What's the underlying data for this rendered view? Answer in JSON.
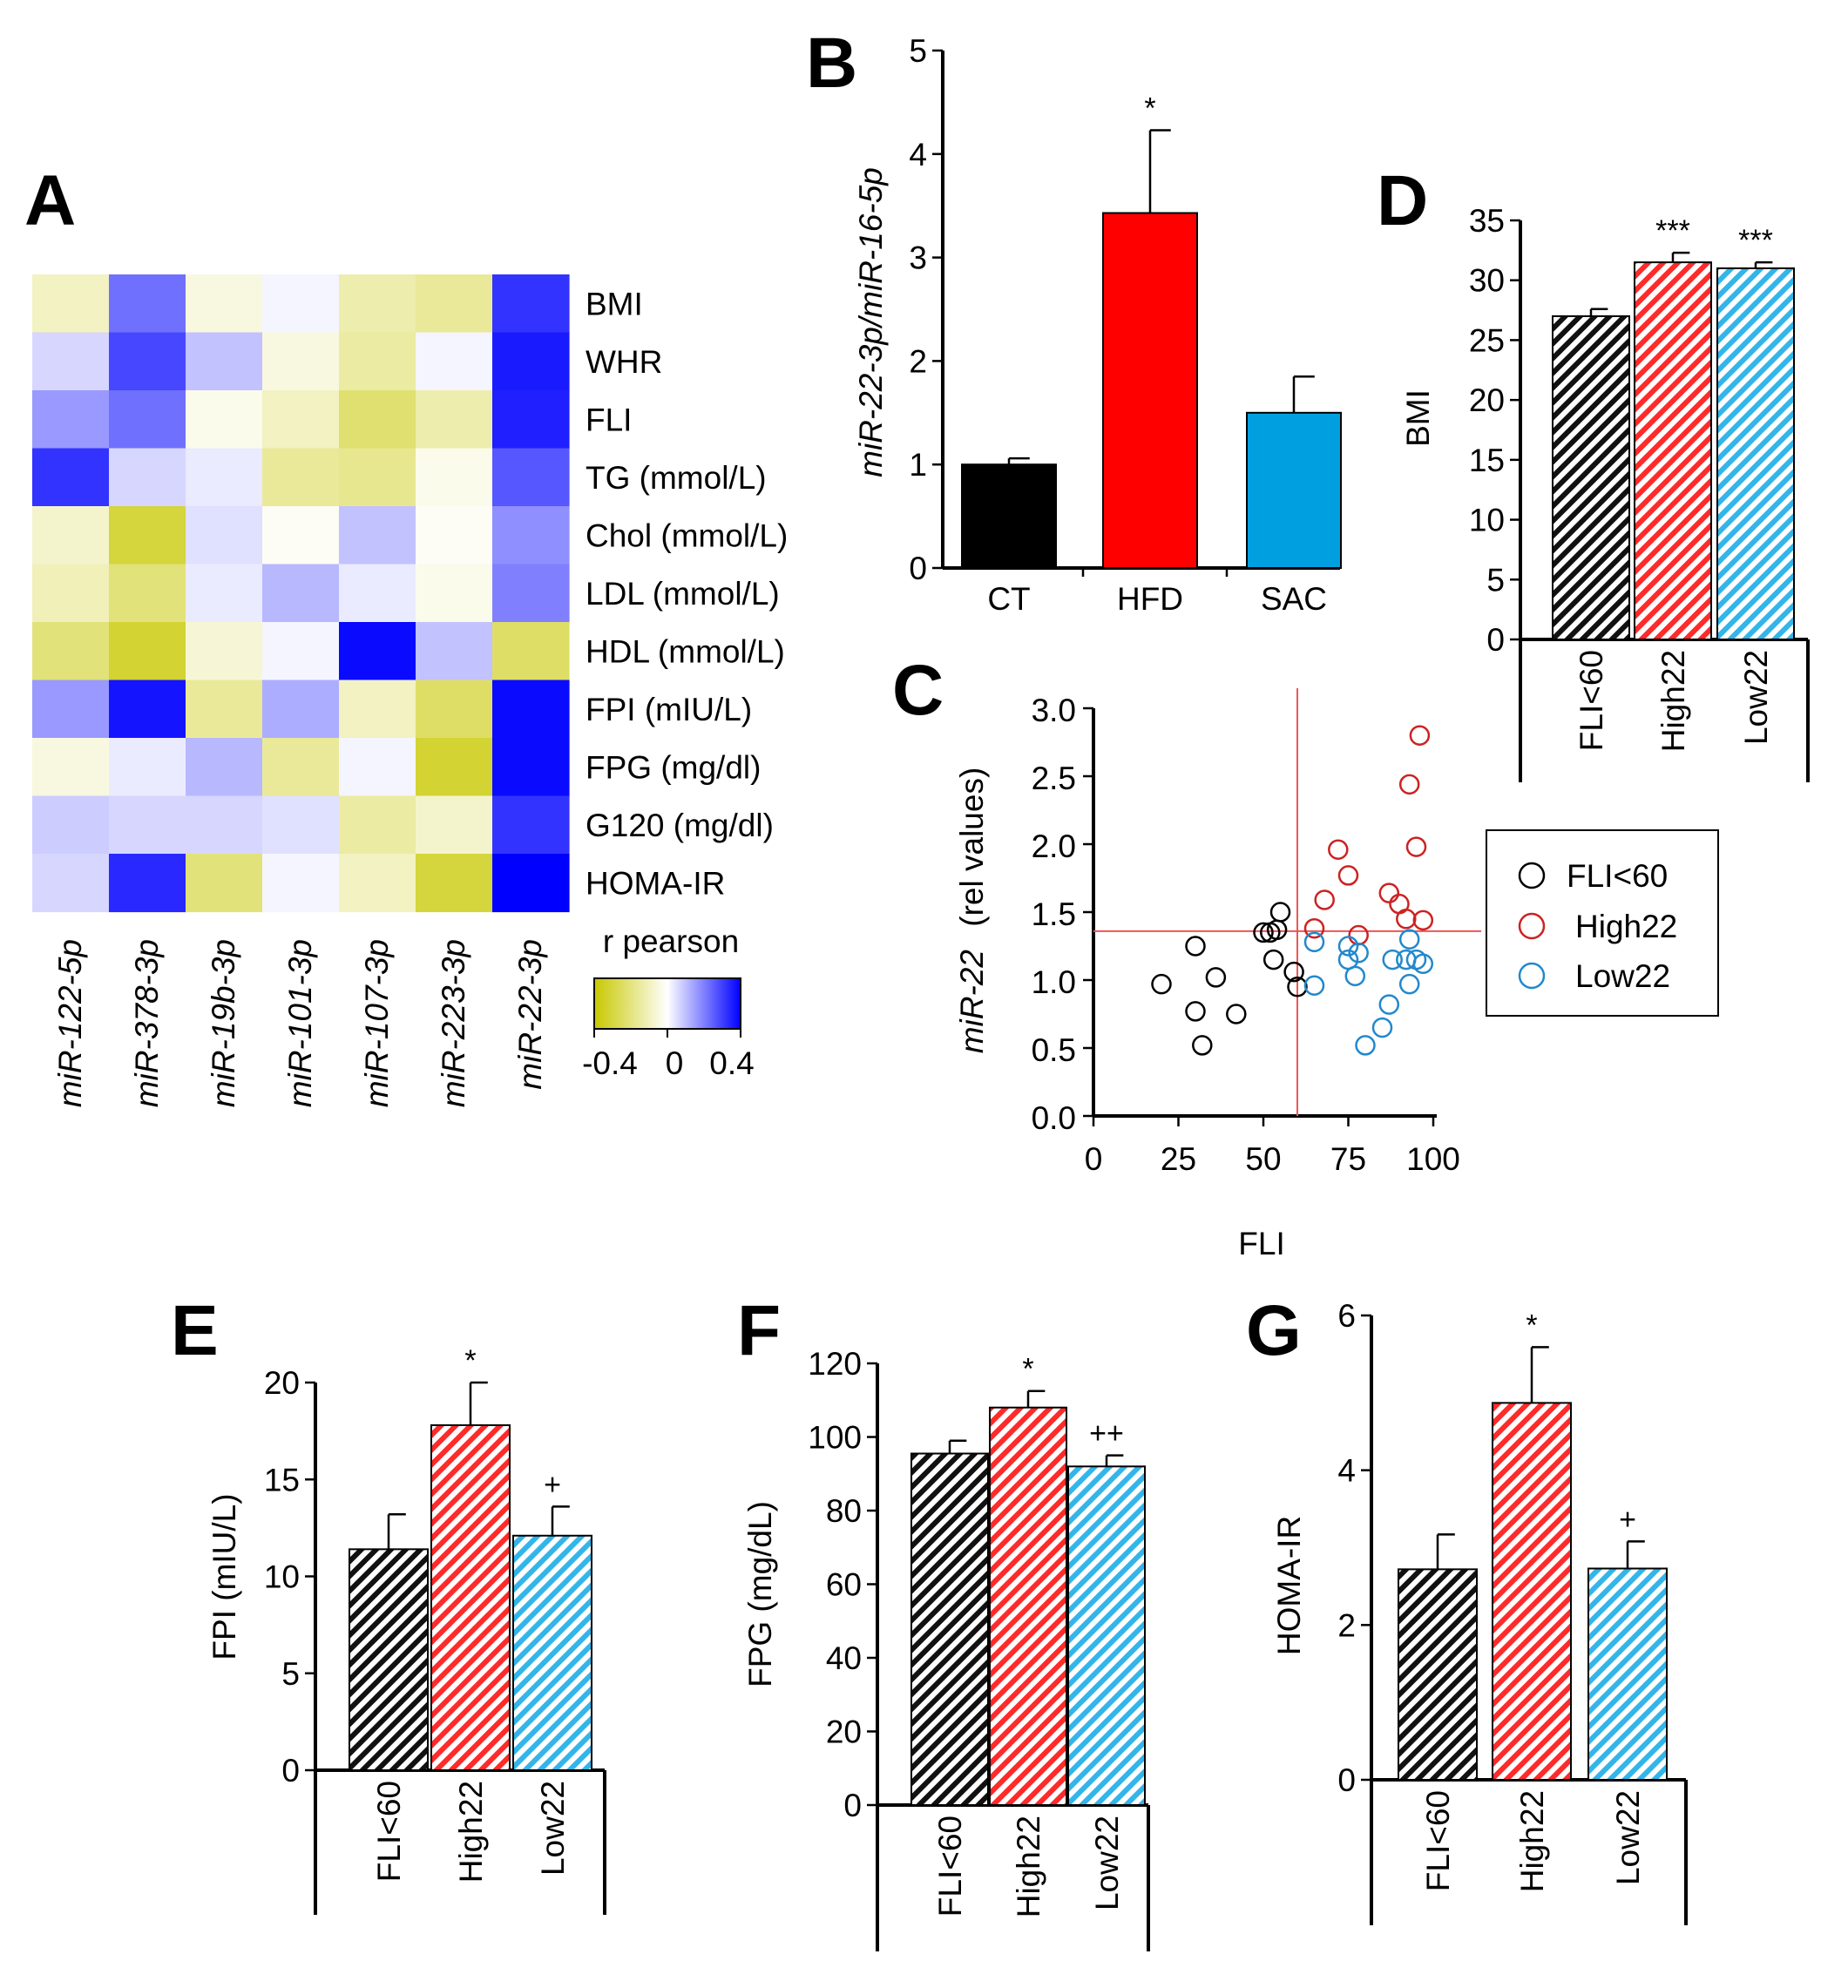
{
  "chart_data": [
    {
      "id": "A",
      "type": "heatmap",
      "panel_label": "A",
      "rows": [
        "BMI",
        "WHR",
        "FLI",
        "TG (mmol/L)",
        "Chol (mmol/L)",
        "LDL (mmol/L)",
        "HDL (mmol/L)",
        "FPI (mIU/L)",
        "FPG (mg/dl)",
        "G120 (mg/dl)",
        "HOMA-IR"
      ],
      "columns": [
        "miR-122-5p",
        "miR-378-3p",
        "miR-19b-3p",
        "miR-101-3p",
        "miR-107-3p",
        "miR-223-3p",
        "miR-22-3p"
      ],
      "values": [
        [
          -0.12,
          0.28,
          -0.06,
          0.02,
          -0.16,
          -0.2,
          0.4
        ],
        [
          0.08,
          0.36,
          0.12,
          -0.06,
          -0.18,
          0.02,
          0.45
        ],
        [
          0.2,
          0.28,
          -0.04,
          -0.12,
          -0.28,
          -0.16,
          0.44
        ],
        [
          0.4,
          0.08,
          0.04,
          -0.2,
          -0.22,
          -0.04,
          0.33
        ],
        [
          -0.1,
          -0.38,
          0.06,
          -0.02,
          0.12,
          -0.02,
          0.22
        ],
        [
          -0.14,
          -0.26,
          0.04,
          0.14,
          0.04,
          -0.04,
          0.25
        ],
        [
          -0.26,
          -0.4,
          -0.08,
          0.02,
          0.48,
          0.12,
          -0.3
        ],
        [
          0.2,
          0.46,
          -0.2,
          0.16,
          -0.12,
          -0.3,
          0.48
        ],
        [
          -0.06,
          0.04,
          0.14,
          -0.2,
          0.02,
          -0.4,
          0.48
        ],
        [
          0.1,
          0.08,
          0.08,
          0.06,
          -0.18,
          -0.1,
          0.4
        ],
        [
          0.08,
          0.42,
          -0.26,
          0.02,
          -0.12,
          -0.38,
          0.5
        ]
      ],
      "colorbar": {
        "title": "r pearson",
        "ticks": [
          "-0.4",
          "0",
          "0.4"
        ],
        "low_color": "#c8c800",
        "mid_color": "#ffffff",
        "high_color": "#0000ff"
      }
    },
    {
      "id": "B",
      "type": "bar",
      "panel_label": "B",
      "categories": [
        "CT",
        "HFD",
        "SAC"
      ],
      "values": [
        1.0,
        3.43,
        1.5
      ],
      "errors": [
        0.06,
        0.8,
        0.35
      ],
      "colors": [
        "#000000",
        "#ff0000",
        "#00a0e0"
      ],
      "annotations": [
        "",
        "*",
        ""
      ],
      "ylabel": "miR-22-3p/miR-16-5p",
      "ylim": [
        0,
        5
      ],
      "yticks": [
        "0",
        "1",
        "2",
        "3",
        "4",
        "5"
      ]
    },
    {
      "id": "C",
      "type": "scatter",
      "panel_label": "C",
      "xlabel": "FLI",
      "ylabel_italic": "miR-22",
      "ylabel_rest": "(rel values)",
      "xlim": [
        0,
        100
      ],
      "ylim": [
        0,
        3
      ],
      "xticks": [
        "0",
        "25",
        "50",
        "75",
        "100"
      ],
      "yticks": [
        "0.0",
        "0.5",
        "1.0",
        "1.5",
        "2.0",
        "2.5",
        "3.0"
      ],
      "thresholds": {
        "x": 60,
        "y": 1.36
      },
      "series": [
        {
          "name": "FLI<60",
          "color": "#000000",
          "points": [
            [
              20,
              0.97
            ],
            [
              30,
              1.25
            ],
            [
              30,
              0.77
            ],
            [
              32,
              0.52
            ],
            [
              36,
              1.02
            ],
            [
              42,
              0.75
            ],
            [
              50,
              1.35
            ],
            [
              52,
              1.35
            ],
            [
              53,
              1.15
            ],
            [
              54,
              1.37
            ],
            [
              55,
              1.5
            ],
            [
              59,
              1.06
            ],
            [
              60,
              0.95
            ]
          ]
        },
        {
          "name": "High22",
          "color": "#cc2222",
          "points": [
            [
              65,
              1.38
            ],
            [
              68,
              1.59
            ],
            [
              72,
              1.96
            ],
            [
              75,
              1.77
            ],
            [
              78,
              1.33
            ],
            [
              87,
              1.64
            ],
            [
              90,
              1.56
            ],
            [
              92,
              1.45
            ],
            [
              93,
              2.44
            ],
            [
              95,
              1.98
            ],
            [
              96,
              2.8
            ],
            [
              97,
              1.44
            ]
          ]
        },
        {
          "name": "Low22",
          "color": "#2288cc",
          "points": [
            [
              65,
              1.28
            ],
            [
              65,
              0.96
            ],
            [
              75,
              1.15
            ],
            [
              75,
              1.25
            ],
            [
              77,
              1.03
            ],
            [
              78,
              1.2
            ],
            [
              80,
              0.52
            ],
            [
              85,
              0.65
            ],
            [
              87,
              0.82
            ],
            [
              88,
              1.15
            ],
            [
              92,
              1.15
            ],
            [
              93,
              1.3
            ],
            [
              93,
              0.97
            ],
            [
              95,
              1.15
            ],
            [
              97,
              1.12
            ]
          ]
        }
      ],
      "legend": [
        "FLI<60",
        "High22",
        "Low22"
      ]
    },
    {
      "id": "D",
      "type": "bar",
      "panel_label": "D",
      "categories": [
        "FLI<60",
        "High22",
        "Low22"
      ],
      "values": [
        27.0,
        31.5,
        31.0
      ],
      "errors": [
        0.6,
        0.8,
        0.5
      ],
      "annotations": [
        "",
        "***",
        "***"
      ],
      "ylabel": "BMI",
      "ylim": [
        0,
        35
      ],
      "yticks": [
        "0",
        "5",
        "10",
        "15",
        "20",
        "25",
        "30",
        "35"
      ]
    },
    {
      "id": "E",
      "type": "bar",
      "panel_label": "E",
      "categories": [
        "FLI<60",
        "High22",
        "Low22"
      ],
      "values": [
        11.4,
        17.8,
        12.1
      ],
      "errors": [
        1.8,
        2.2,
        1.5
      ],
      "annotations": [
        "",
        "*",
        "+"
      ],
      "ylabel": "FPI (mIU/L)",
      "ylim": [
        0,
        20
      ],
      "yticks": [
        "0",
        "5",
        "10",
        "15",
        "20"
      ]
    },
    {
      "id": "F",
      "type": "bar",
      "panel_label": "F",
      "categories": [
        "FLI<60",
        "High22",
        "Low22"
      ],
      "values": [
        95.5,
        108.0,
        92.0
      ],
      "errors": [
        3.5,
        4.5,
        3.0
      ],
      "annotations": [
        "",
        "*",
        "++"
      ],
      "ylabel": "FPG (mg/dL)",
      "ylim": [
        0,
        120
      ],
      "yticks": [
        "0",
        "20",
        "40",
        "60",
        "80",
        "100",
        "120"
      ]
    },
    {
      "id": "G",
      "type": "bar",
      "panel_label": "G",
      "categories": [
        "FLI<60",
        "High22",
        "Low22"
      ],
      "values": [
        2.72,
        4.87,
        2.73
      ],
      "errors": [
        0.45,
        0.72,
        0.35
      ],
      "annotations": [
        "",
        "*",
        "+"
      ],
      "ylabel": "HOMA-IR",
      "ylim": [
        0,
        6
      ],
      "yticks": [
        "0",
        "2",
        "4",
        "6"
      ]
    }
  ],
  "group_colors": {
    "FLI<60": "#000000",
    "High22": "#ff2a2a",
    "Low22": "#33b5ea"
  }
}
